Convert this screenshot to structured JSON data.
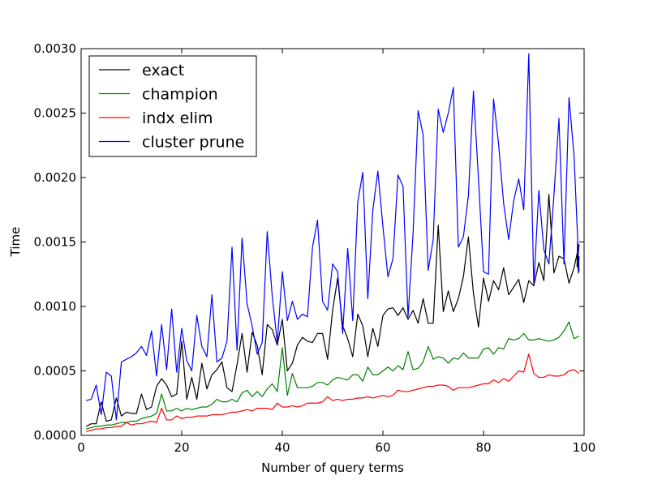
{
  "chart_data": {
    "type": "line",
    "xlabel": "Number of query terms",
    "ylabel": "Time",
    "xlim": [
      0,
      100
    ],
    "ylim": [
      0,
      0.003
    ],
    "xticks": [
      0,
      20,
      40,
      60,
      80,
      100
    ],
    "xtick_labels": [
      "0",
      "20",
      "40",
      "60",
      "80",
      "100"
    ],
    "yticks": [
      0,
      0.0005,
      0.001,
      0.0015,
      0.002,
      0.0025,
      0.003
    ],
    "ytick_labels": [
      "0.0000",
      "0.0005",
      "0.0010",
      "0.0015",
      "0.0020",
      "0.0025",
      "0.0030"
    ],
    "grid": false,
    "legend_position": "top-left",
    "x_start": 1,
    "x_end": 99,
    "series": [
      {
        "name": "exact",
        "color": "#000000",
        "values": [
          7e-05,
          9e-05,
          9e-05,
          0.00026,
          0.00011,
          0.00012,
          0.00029,
          0.00015,
          0.00018,
          0.00017,
          0.00017,
          0.00032,
          0.0002,
          0.00022,
          0.00038,
          0.00044,
          0.00039,
          0.0003,
          0.00032,
          0.00073,
          0.00028,
          0.00045,
          0.00028,
          0.00056,
          0.00036,
          0.00047,
          0.00051,
          0.00057,
          0.00037,
          0.00034,
          0.00055,
          0.00079,
          0.00049,
          0.0008,
          0.0007,
          0.00047,
          0.00086,
          0.00082,
          0.0007,
          0.0009,
          0.0005,
          0.00056,
          0.0007,
          0.00076,
          0.00073,
          0.00072,
          0.00079,
          0.00079,
          0.00059,
          0.00097,
          0.00122,
          0.00085,
          0.00075,
          0.00061,
          0.00094,
          0.00085,
          0.00061,
          0.00083,
          0.00069,
          0.00093,
          0.00098,
          0.00099,
          0.00093,
          0.00099,
          0.0009,
          0.00097,
          0.00087,
          0.00106,
          0.00087,
          0.00087,
          0.00163,
          0.00096,
          0.00112,
          0.00096,
          0.00106,
          0.00123,
          0.00154,
          0.0011,
          0.00084,
          0.00122,
          0.00104,
          0.0012,
          0.00113,
          0.0013,
          0.00109,
          0.00115,
          0.00121,
          0.00103,
          0.0012,
          0.00116,
          0.00134,
          0.0012,
          0.00187,
          0.00126,
          0.00139,
          0.00137,
          0.00118,
          0.0013,
          0.00148
        ],
        "tail_values": [
          0.00131,
          0.0015,
          0.0013,
          0.00126,
          0.00139
        ]
      },
      {
        "name": "champion",
        "color": "#008000",
        "values": [
          5e-05,
          6e-05,
          7e-05,
          7e-05,
          8e-05,
          8e-05,
          9e-05,
          0.0001,
          0.0001,
          0.00011,
          0.00011,
          0.00013,
          0.00014,
          0.00015,
          0.00017,
          0.00032,
          0.00019,
          0.00019,
          0.00021,
          0.00019,
          0.00021,
          0.0002,
          0.00021,
          0.00022,
          0.00022,
          0.00024,
          0.00028,
          0.00026,
          0.00026,
          0.00028,
          0.00026,
          0.00033,
          0.00035,
          0.0003,
          0.00034,
          0.0003,
          0.00036,
          0.0004,
          0.00034,
          0.00068,
          0.00031,
          0.00048,
          0.00037,
          0.00037,
          0.00037,
          0.00038,
          0.00041,
          0.00041,
          0.00039,
          0.00043,
          0.00045,
          0.00044,
          0.00043,
          0.00047,
          0.00047,
          0.00042,
          0.00053,
          0.00047,
          0.00047,
          0.0005,
          0.00053,
          0.0005,
          0.00054,
          0.00051,
          0.00065,
          0.00051,
          0.00052,
          0.00057,
          0.00069,
          0.00059,
          0.00061,
          0.0006,
          0.00056,
          0.0006,
          0.00059,
          0.00064,
          0.0006,
          0.0006,
          0.0006,
          0.00067,
          0.00068,
          0.00063,
          0.00068,
          0.00067,
          0.00075,
          0.00074,
          0.00075,
          0.00079,
          0.00074,
          0.00074,
          0.00075,
          0.00074,
          0.00073,
          0.00074,
          0.00076,
          0.00081,
          0.00088,
          0.00075,
          0.00077
        ],
        "tail_values": []
      },
      {
        "name": "indx elim",
        "color": "#ff0000",
        "values": [
          3e-05,
          4e-05,
          5e-05,
          5e-05,
          6e-05,
          6e-05,
          7e-05,
          7e-05,
          0.0001,
          8e-05,
          9e-05,
          9e-05,
          0.0001,
          0.00011,
          0.0001,
          0.00021,
          0.00012,
          0.00012,
          0.00015,
          0.00013,
          0.00014,
          0.00014,
          0.00015,
          0.00015,
          0.00015,
          0.00016,
          0.00016,
          0.00016,
          0.00017,
          0.00018,
          0.00018,
          0.00019,
          0.0002,
          0.00019,
          0.00021,
          0.00021,
          0.00021,
          0.0002,
          0.00025,
          0.00022,
          0.00022,
          0.00023,
          0.00022,
          0.00023,
          0.00025,
          0.00025,
          0.00025,
          0.00026,
          0.0003,
          0.00027,
          0.00028,
          0.00027,
          0.00028,
          0.00028,
          0.00029,
          0.00029,
          0.0003,
          0.00029,
          0.0003,
          0.00031,
          0.0003,
          0.00031,
          0.00035,
          0.00034,
          0.00034,
          0.00035,
          0.00036,
          0.00037,
          0.00038,
          0.00038,
          0.00039,
          0.00039,
          0.00038,
          0.00035,
          0.00037,
          0.00037,
          0.00037,
          0.00038,
          0.00039,
          0.0004,
          0.0004,
          0.00043,
          0.00041,
          0.00044,
          0.00042,
          0.00046,
          0.0005,
          0.00049,
          0.00063,
          0.00048,
          0.00045,
          0.00045,
          0.00047,
          0.00046,
          0.00046,
          0.00047,
          0.0005,
          0.00051,
          0.00048
        ],
        "tail_values": []
      },
      {
        "name": "cluster prune",
        "color": "#0000ff",
        "values": [
          0.00027,
          0.00028,
          0.00039,
          0.00016,
          0.00049,
          0.00046,
          0.00012,
          0.00057,
          0.00059,
          0.00061,
          0.00064,
          0.00069,
          0.00062,
          0.00081,
          0.00046,
          0.00086,
          0.00051,
          0.00098,
          0.00049,
          0.00083,
          0.00058,
          0.0005,
          0.00093,
          0.00069,
          0.00061,
          0.00109,
          0.00057,
          0.0006,
          0.00073,
          0.00146,
          0.00066,
          0.00153,
          0.00102,
          0.00085,
          0.00063,
          0.00072,
          0.00158,
          0.00108,
          0.00072,
          0.00127,
          0.00089,
          0.00104,
          0.0009,
          0.00094,
          0.00092,
          0.00146,
          0.00167,
          0.00104,
          0.00097,
          0.00133,
          0.00127,
          0.00079,
          0.00145,
          0.00089,
          0.00181,
          0.00204,
          0.00106,
          0.00175,
          0.00205,
          0.00162,
          0.00123,
          0.00137,
          0.00202,
          0.00193,
          0.00092,
          0.00157,
          0.00252,
          0.00233,
          0.00128,
          0.00152,
          0.00253,
          0.00235,
          0.0025,
          0.0027,
          0.00146,
          0.00154,
          0.00186,
          0.00267,
          0.00199,
          0.00127,
          0.00125,
          0.00261,
          0.00226,
          0.0018,
          0.00152,
          0.00182,
          0.00199,
          0.00175,
          0.00296,
          0.00116,
          0.0019,
          0.00144,
          0.00133,
          0.00186,
          0.00246,
          0.00133,
          0.00262,
          0.00217,
          0.00127
        ],
        "tail_values": []
      }
    ]
  }
}
